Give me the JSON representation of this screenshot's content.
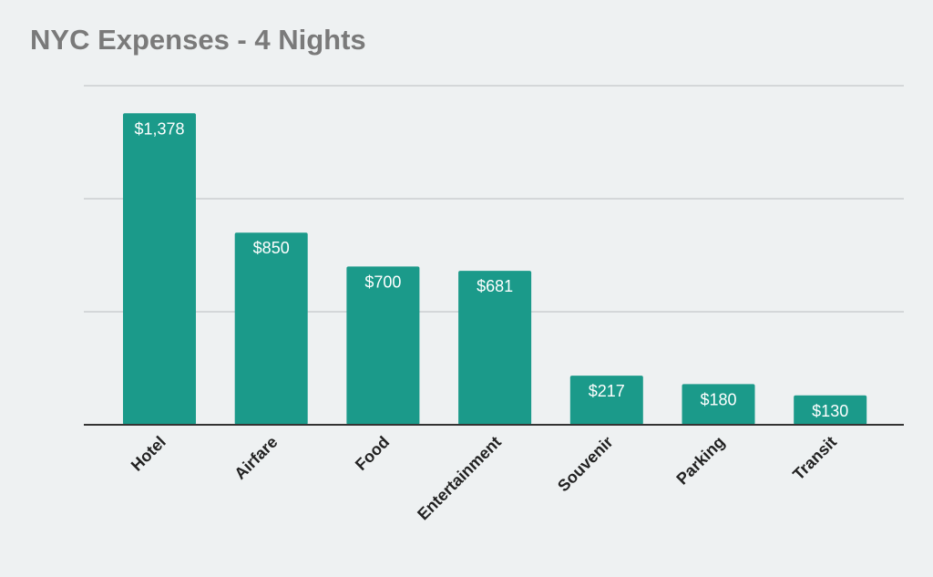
{
  "chart_data": {
    "type": "bar",
    "title": "NYC Expenses - 4 Nights",
    "xlabel": "",
    "ylabel": "",
    "categories": [
      "Hotel",
      "Airfare",
      "Food",
      "Entertainment",
      "Souvenir",
      "Parking",
      "Transit"
    ],
    "values": [
      1378,
      850,
      700,
      681,
      217,
      180,
      130
    ],
    "data_labels": [
      "$1,378",
      "$850",
      "$700",
      "$681",
      "$217",
      "$180",
      "$130"
    ],
    "ylim": [
      0,
      1500
    ],
    "gridlines": [
      500,
      1000,
      1500
    ],
    "grid": true,
    "legend": "none",
    "bar_color": "#1b9a8a",
    "background_color": "#eef1f2",
    "title_color": "#7a7a7a"
  }
}
